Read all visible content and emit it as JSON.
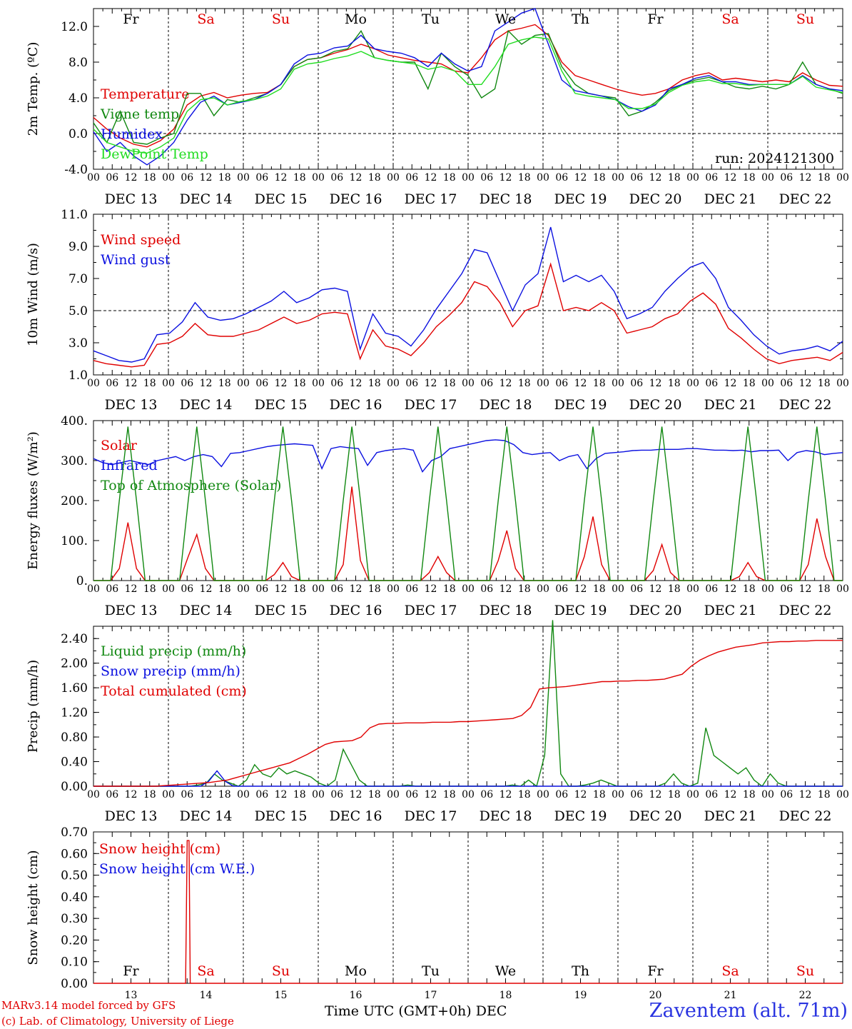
{
  "run_label": "run: 2024121300",
  "colors": {
    "red": "#e00000",
    "green": "#118811",
    "blue": "#0b10e0",
    "lightgreen": "#22dd22",
    "station": "#2a34e0"
  },
  "time_axis": {
    "start": "2024-12-13 00:00 UTC",
    "end": "2024-12-23 00:00 UTC",
    "hour_labels": [
      "00",
      "06",
      "12",
      "18"
    ],
    "final_label": "00",
    "date_labels": [
      "DEC 13",
      "DEC 14",
      "DEC 15",
      "DEC 16",
      "DEC 17",
      "DEC 18",
      "DEC 19",
      "DEC 20",
      "DEC 21",
      "DEC 22"
    ],
    "weekdays": [
      "Fr",
      "Sa",
      "Su",
      "Mo",
      "Tu",
      "We",
      "Th",
      "Fr",
      "Sa",
      "Su"
    ],
    "weekend_flags": [
      false,
      true,
      true,
      false,
      false,
      false,
      false,
      false,
      true,
      true
    ],
    "bottom_day_numbers": [
      "13",
      "14",
      "15",
      "16",
      "17",
      "18",
      "19",
      "20",
      "21",
      "22"
    ]
  },
  "chart_data": [
    {
      "type": "line",
      "ylabel": "2m Temp. (ºC)",
      "ylim": [
        -4,
        14
      ],
      "yticks": [
        "-4.0",
        "0.0",
        "4.0",
        "8.0",
        "12.0"
      ],
      "ref_line": 0,
      "x_hours_step": 6,
      "series": [
        {
          "name": "Temperature",
          "color": "#e00000",
          "values": [
            1.8,
            0.5,
            -0.5,
            -1.2,
            -1.5,
            -0.8,
            0.5,
            3.2,
            4.2,
            4.6,
            4.0,
            4.3,
            4.5,
            4.6,
            5.5,
            7.5,
            8.3,
            8.5,
            9.0,
            9.4,
            10.0,
            9.5,
            8.8,
            8.5,
            8.2,
            8.0,
            7.8,
            7.0,
            6.8,
            8.5,
            10.5,
            11.5,
            11.8,
            12.2,
            11.0,
            8.0,
            6.5,
            6.0,
            5.5,
            5.0,
            4.6,
            4.3,
            4.5,
            5.0,
            6.0,
            6.5,
            6.8,
            6.0,
            6.2,
            6.0,
            5.8,
            6.0,
            5.8,
            6.8,
            6.0,
            5.4,
            5.3
          ]
        },
        {
          "name": "Vigne temp",
          "color": "#118811",
          "values": [
            1.2,
            -1.0,
            2.5,
            -1.0,
            -1.2,
            -0.5,
            0.0,
            4.5,
            4.5,
            2.0,
            3.8,
            3.5,
            4.0,
            4.5,
            5.5,
            7.5,
            8.3,
            8.5,
            9.2,
            9.5,
            11.5,
            8.5,
            8.2,
            8.0,
            8.0,
            5.0,
            9.0,
            7.5,
            6.5,
            4.0,
            5.0,
            11.5,
            10.0,
            11.0,
            11.2,
            7.5,
            5.5,
            4.5,
            4.2,
            4.0,
            2.0,
            2.5,
            3.5,
            4.8,
            5.5,
            6.0,
            6.3,
            5.8,
            5.2,
            5.0,
            5.3,
            5.0,
            5.5,
            8.0,
            5.5,
            5.0,
            4.5
          ]
        },
        {
          "name": "Humidex",
          "color": "#0b10e0",
          "values": [
            0.2,
            -2.0,
            -1.0,
            -2.5,
            -3.5,
            -2.5,
            -1.0,
            1.5,
            3.5,
            4.2,
            3.2,
            3.5,
            3.8,
            4.5,
            5.5,
            7.8,
            8.8,
            9.0,
            9.6,
            9.8,
            11.0,
            9.5,
            9.2,
            9.0,
            8.5,
            7.5,
            9.0,
            7.8,
            7.0,
            7.5,
            11.5,
            12.5,
            13.5,
            14.0,
            10.0,
            6.0,
            4.8,
            4.5,
            4.2,
            3.8,
            3.0,
            2.5,
            3.2,
            5.0,
            5.5,
            6.2,
            6.5,
            5.8,
            5.8,
            5.5,
            5.5,
            5.5,
            5.5,
            6.5,
            5.5,
            5.0,
            4.8
          ]
        },
        {
          "name": "DewPoint Temp",
          "color": "#22dd22",
          "values": [
            0.5,
            -1.0,
            -1.5,
            -2.0,
            -2.2,
            -1.5,
            -0.5,
            2.5,
            3.8,
            4.0,
            3.2,
            3.6,
            3.8,
            4.2,
            5.0,
            7.2,
            7.8,
            8.0,
            8.4,
            8.7,
            9.2,
            8.5,
            8.2,
            8.0,
            7.8,
            7.2,
            7.5,
            7.0,
            5.5,
            5.5,
            7.5,
            10.0,
            10.5,
            10.8,
            10.6,
            7.0,
            4.5,
            4.2,
            4.0,
            3.8,
            2.8,
            2.8,
            3.3,
            4.6,
            5.4,
            5.8,
            6.0,
            5.6,
            5.6,
            5.4,
            5.5,
            5.5,
            5.5,
            6.4,
            5.2,
            4.9,
            4.6
          ]
        }
      ]
    },
    {
      "type": "line",
      "ylabel": "10m Wind (m/s)",
      "ylim": [
        1,
        11
      ],
      "yticks": [
        "1.0",
        "3.0",
        "5.0",
        "7.0",
        "9.0",
        "11.0"
      ],
      "ref_line": 5,
      "x_hours_step": 6,
      "series": [
        {
          "name": "Wind speed",
          "color": "#e00000",
          "values": [
            1.9,
            1.7,
            1.6,
            1.5,
            1.6,
            2.9,
            3.0,
            3.4,
            4.2,
            3.5,
            3.4,
            3.4,
            3.6,
            3.8,
            4.2,
            4.6,
            4.2,
            4.4,
            4.8,
            4.9,
            4.8,
            2.0,
            3.8,
            2.8,
            2.6,
            2.2,
            3.0,
            4.0,
            4.7,
            5.5,
            6.8,
            6.5,
            5.5,
            4.0,
            5.0,
            5.3,
            7.9,
            5.0,
            5.2,
            5.0,
            5.5,
            5.0,
            3.6,
            3.8,
            4.0,
            4.5,
            4.8,
            5.6,
            6.1,
            5.4,
            3.9,
            3.3,
            2.6,
            2.0,
            1.7,
            1.9,
            2.0,
            2.1,
            1.9,
            2.4
          ]
        },
        {
          "name": "Wind gust",
          "color": "#0b10e0",
          "values": [
            2.5,
            2.2,
            1.9,
            1.8,
            2.0,
            3.5,
            3.6,
            4.3,
            5.5,
            4.6,
            4.4,
            4.5,
            4.8,
            5.2,
            5.6,
            6.2,
            5.5,
            5.8,
            6.3,
            6.4,
            6.2,
            2.6,
            4.8,
            3.6,
            3.4,
            2.8,
            3.8,
            5.1,
            6.2,
            7.3,
            8.8,
            8.6,
            6.8,
            5.0,
            6.6,
            7.3,
            10.2,
            6.8,
            7.2,
            6.8,
            7.2,
            6.2,
            4.5,
            4.8,
            5.2,
            6.2,
            7.0,
            7.7,
            8.0,
            7.0,
            5.2,
            4.4,
            3.5,
            2.8,
            2.3,
            2.5,
            2.6,
            2.8,
            2.5,
            3.1
          ]
        }
      ]
    },
    {
      "type": "line",
      "ylabel": "Energy fluxes (W/m²)",
      "ylim": [
        0,
        400
      ],
      "yticks": [
        "0.",
        "100.",
        "200.",
        "300.",
        "400."
      ],
      "ref_line": null,
      "x_hours_step": 3,
      "series": [
        {
          "name": "Solar",
          "color": "#e00000",
          "values": [
            0,
            0,
            0,
            30,
            145,
            30,
            0,
            0,
            0,
            0,
            0,
            60,
            115,
            30,
            0,
            0,
            0,
            0,
            0,
            0,
            0,
            15,
            45,
            10,
            0,
            0,
            0,
            0,
            0,
            40,
            235,
            50,
            0,
            0,
            0,
            0,
            0,
            0,
            0,
            20,
            60,
            20,
            0,
            0,
            0,
            0,
            0,
            50,
            125,
            30,
            0,
            0,
            0,
            0,
            0,
            0,
            0,
            60,
            160,
            40,
            0,
            0,
            0,
            0,
            0,
            25,
            90,
            20,
            0,
            0,
            0,
            0,
            0,
            0,
            0,
            10,
            45,
            10,
            0,
            0,
            0,
            0,
            0,
            40,
            155,
            60,
            0,
            0
          ]
        },
        {
          "name": "Infrared",
          "color": "#0b10e0",
          "values": [
            305,
            295,
            290,
            295,
            300,
            295,
            290,
            300,
            305,
            310,
            300,
            310,
            315,
            310,
            285,
            318,
            320,
            325,
            330,
            335,
            338,
            340,
            342,
            340,
            338,
            280,
            330,
            335,
            332,
            330,
            288,
            320,
            325,
            328,
            330,
            326,
            272,
            300,
            310,
            330,
            335,
            340,
            345,
            350,
            352,
            350,
            340,
            320,
            315,
            318,
            320,
            300,
            310,
            315,
            280,
            305,
            318,
            320,
            322,
            325,
            326,
            326,
            328,
            328,
            328,
            330,
            330,
            328,
            326,
            326,
            325,
            326,
            322,
            325,
            325,
            326,
            300,
            320,
            325,
            322,
            315,
            318,
            320
          ]
        },
        {
          "name": "Top of Atmosphere (Solar)",
          "color": "#118811",
          "values": [
            0,
            0,
            0,
            200,
            385,
            200,
            0,
            0,
            0,
            0,
            0,
            200,
            385,
            200,
            0,
            0,
            0,
            0,
            0,
            0,
            0,
            200,
            385,
            200,
            0,
            0,
            0,
            0,
            0,
            200,
            385,
            200,
            0,
            0,
            0,
            0,
            0,
            0,
            0,
            200,
            385,
            200,
            0,
            0,
            0,
            0,
            0,
            200,
            385,
            200,
            0,
            0,
            0,
            0,
            0,
            0,
            0,
            200,
            385,
            200,
            0,
            0,
            0,
            0,
            0,
            200,
            385,
            200,
            0,
            0,
            0,
            0,
            0,
            0,
            0,
            200,
            385,
            200,
            0,
            0,
            0,
            0,
            0,
            200,
            385,
            200,
            0,
            0
          ]
        }
      ]
    },
    {
      "type": "line",
      "ylabel": "Precip (mm/h)",
      "ylim": [
        0,
        2.6
      ],
      "yticks": [
        "0.00",
        "0.40",
        "0.80",
        "1.20",
        "1.60",
        "2.00",
        "2.40"
      ],
      "ref_line": null,
      "x_hours_step": 3,
      "series": [
        {
          "name": "Liquid precip (mm/h)",
          "color": "#118811",
          "values": [
            0,
            0,
            0,
            0,
            0,
            0,
            0,
            0,
            0,
            0,
            0,
            0,
            0,
            0.02,
            0.05,
            0.2,
            0.1,
            0.05,
            0,
            0.1,
            0.35,
            0.2,
            0.15,
            0.3,
            0.2,
            0.25,
            0.2,
            0.15,
            0.05,
            0,
            0.1,
            0.6,
            0.35,
            0.1,
            0,
            0,
            0,
            0,
            0,
            0.02,
            0,
            0,
            0,
            0,
            0,
            0,
            0,
            0,
            0,
            0,
            0,
            0,
            0.02,
            0,
            0.1,
            0,
            0.5,
            2.7,
            0.2,
            0,
            0,
            0.02,
            0.05,
            0.1,
            0.05,
            0,
            0,
            0,
            0,
            0,
            0,
            0.05,
            0.2,
            0.05,
            0,
            0.05,
            0.95,
            0.5,
            0.4,
            0.3,
            0.2,
            0.3,
            0.1,
            0,
            0.2,
            0.05,
            0,
            0,
            0,
            0,
            0,
            0,
            0,
            0
          ]
        },
        {
          "name": "Snow precip (mm/h)",
          "color": "#0b10e0",
          "values": [
            0,
            0,
            0,
            0,
            0,
            0,
            0,
            0,
            0,
            0,
            0,
            0,
            0,
            0,
            0.08,
            0.25,
            0.08,
            0,
            0,
            0,
            0,
            0,
            0,
            0,
            0,
            0,
            0,
            0,
            0,
            0,
            0,
            0,
            0,
            0,
            0,
            0,
            0,
            0,
            0,
            0,
            0,
            0,
            0,
            0,
            0,
            0,
            0,
            0,
            0,
            0,
            0,
            0,
            0,
            0,
            0,
            0,
            0,
            0,
            0,
            0,
            0,
            0,
            0,
            0,
            0,
            0,
            0,
            0,
            0,
            0,
            0,
            0,
            0,
            0,
            0,
            0,
            0,
            0,
            0,
            0,
            0,
            0,
            0,
            0,
            0,
            0,
            0,
            0,
            0,
            0,
            0,
            0
          ]
        },
        {
          "name": "Total cumulated (cm)",
          "color": "#e00000",
          "values": [
            0,
            0,
            0,
            0,
            0,
            0,
            0,
            0,
            0.01,
            0.02,
            0.03,
            0.04,
            0.05,
            0.06,
            0.08,
            0.1,
            0.14,
            0.18,
            0.22,
            0.26,
            0.3,
            0.34,
            0.38,
            0.45,
            0.52,
            0.6,
            0.68,
            0.72,
            0.73,
            0.74,
            0.8,
            0.95,
            1.01,
            1.02,
            1.02,
            1.03,
            1.03,
            1.03,
            1.04,
            1.04,
            1.04,
            1.05,
            1.05,
            1.06,
            1.07,
            1.08,
            1.09,
            1.1,
            1.15,
            1.28,
            1.58,
            1.6,
            1.61,
            1.62,
            1.64,
            1.66,
            1.68,
            1.7,
            1.7,
            1.71,
            1.71,
            1.72,
            1.72,
            1.73,
            1.74,
            1.78,
            1.82,
            1.95,
            2.05,
            2.12,
            2.18,
            2.22,
            2.26,
            2.28,
            2.3,
            2.33,
            2.34,
            2.35,
            2.35,
            2.36,
            2.36,
            2.37,
            2.37,
            2.37,
            2.37
          ]
        }
      ]
    },
    {
      "type": "line",
      "ylabel": "Snow height (cm)",
      "ylim": [
        0,
        0.7
      ],
      "yticks": [
        "0.00",
        "0.10",
        "0.20",
        "0.30",
        "0.40",
        "0.50",
        "0.60",
        "0.70"
      ],
      "ref_line": null,
      "series": [
        {
          "name": "Snow height (cm)",
          "color": "#e00000",
          "points": [
            [
              0,
              0
            ],
            [
              29.5,
              0
            ],
            [
              30,
              0.66
            ],
            [
              30.6,
              0.66
            ],
            [
              31,
              0
            ],
            [
              240,
              0
            ]
          ]
        },
        {
          "name": "Snow height (cm W.E.)",
          "color": "#0b10e0",
          "points": []
        }
      ]
    }
  ],
  "footer": {
    "credit_line1": "MARv3.14 model forced by GFS",
    "credit_line2": "(c) Lab. of Climatology, University of Liege",
    "x_title": "Time UTC (GMT+0h)",
    "x_month": "DEC",
    "station": "Zaventem (alt. 71m)"
  }
}
